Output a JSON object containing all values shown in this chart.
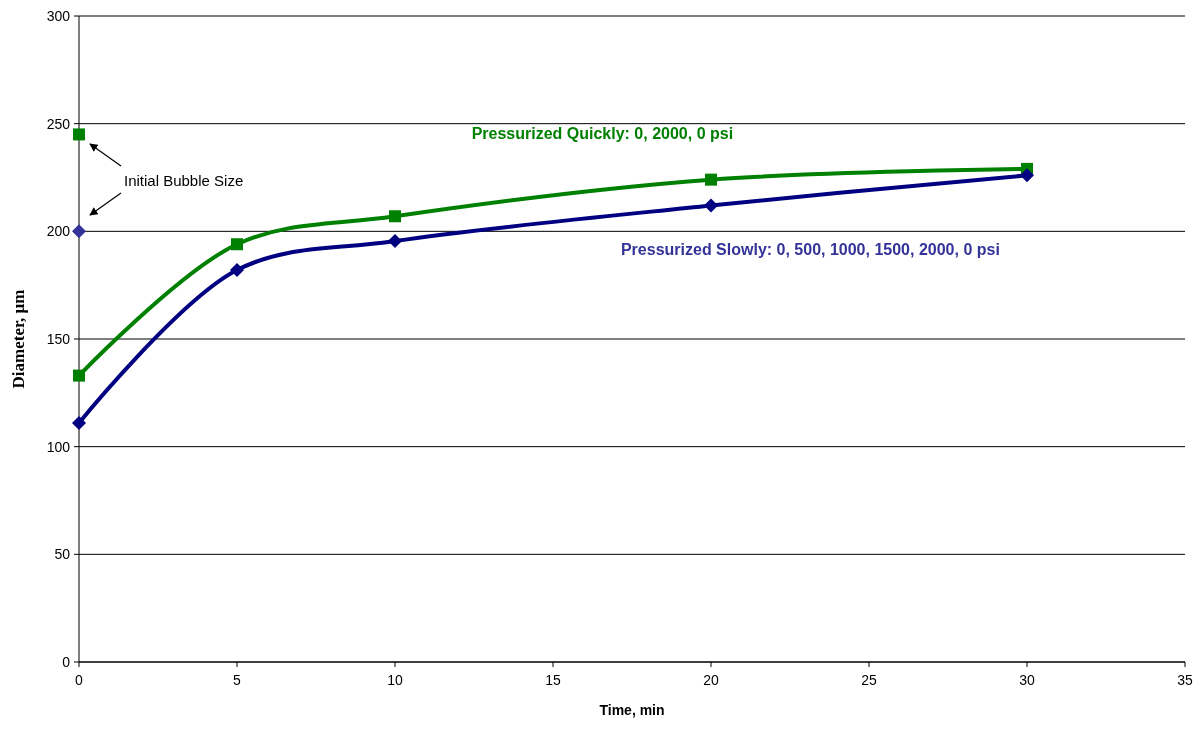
{
  "chart_data": {
    "type": "line",
    "xlabel": "Time, min",
    "ylabel": "Diameter, µm",
    "xlim": [
      0,
      35
    ],
    "xticks": [
      0,
      5,
      10,
      15,
      20,
      25,
      30,
      35
    ],
    "ylim": [
      0,
      300
    ],
    "yticks": [
      0,
      50,
      100,
      150,
      200,
      250,
      300
    ],
    "grid": "y",
    "annotations": [
      "Initial Bubble Size"
    ],
    "series": [
      {
        "name": "Pressurized Quickly:  0, 2000, 0 psi",
        "color": "#008000",
        "marker": "square",
        "x": [
          0,
          5,
          10,
          20,
          30
        ],
        "values": [
          133,
          194,
          207,
          224,
          229
        ]
      },
      {
        "name": "Pressurized Slowly:  0, 500, 1000, 1500, 2000, 0 psi",
        "color": "#000080",
        "marker": "diamond",
        "x": [
          0,
          5,
          10,
          20,
          30
        ],
        "values": [
          111,
          182,
          195.5,
          212,
          226
        ]
      },
      {
        "type": "scatter",
        "color": "#008000",
        "marker": "square",
        "x": [
          0
        ],
        "values": [
          245
        ]
      },
      {
        "type": "scatter",
        "color": "#333399",
        "marker": "diamond",
        "x": [
          0
        ],
        "values": [
          200
        ]
      }
    ]
  }
}
